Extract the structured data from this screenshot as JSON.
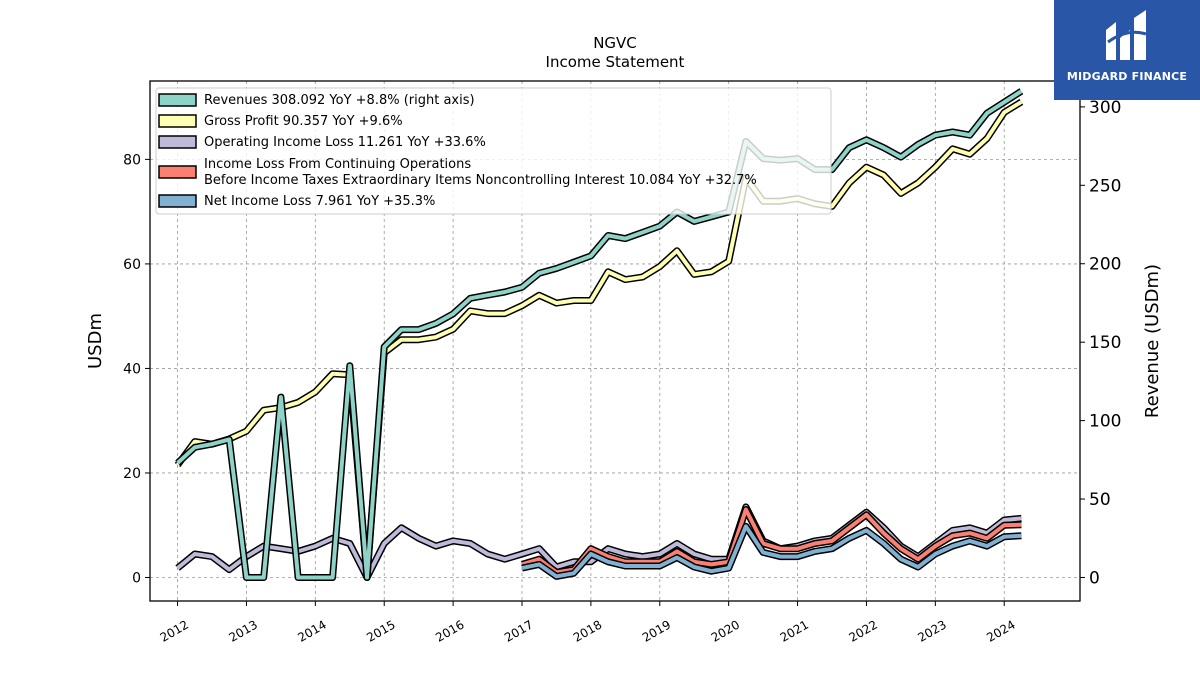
{
  "chart_data": {
    "type": "line",
    "title": "NGVC",
    "subtitle": "Income Statement",
    "ylabel_left": "USDm",
    "ylabel_right": "Revenue (USDm)",
    "ylim_left": [
      -4.5,
      95
    ],
    "ylim_right": [
      -15,
      316.5
    ],
    "yticks_left": [
      0,
      20,
      40,
      60,
      80
    ],
    "yticks_right": [
      0,
      50,
      100,
      150,
      200,
      250,
      300
    ],
    "xlim": [
      2011.6,
      2025.1
    ],
    "xticks": [
      "2012",
      "2013",
      "2014",
      "2015",
      "2016",
      "2017",
      "2018",
      "2019",
      "2020",
      "2021",
      "2022",
      "2023",
      "2024"
    ],
    "grid": true,
    "legend_placement": "top-left",
    "series": [
      {
        "name": "Revenues  308.092 YoY +8.8% (right axis)",
        "axis": "right",
        "color": "#8dd3c7",
        "x": [
          2012.0,
          2012.25,
          2012.5,
          2012.75,
          2013.0,
          2013.25,
          2013.5,
          2013.75,
          2014.0,
          2014.25,
          2014.5,
          2014.75,
          2015.0,
          2015.25,
          2015.5,
          2015.75,
          2016.0,
          2016.25,
          2016.5,
          2016.75,
          2017.0,
          2017.25,
          2017.5,
          2017.75,
          2018.0,
          2018.25,
          2018.5,
          2018.75,
          2019.0,
          2019.25,
          2019.5,
          2019.75,
          2020.0,
          2020.25,
          2020.5,
          2020.75,
          2021.0,
          2021.25,
          2021.5,
          2021.75,
          2022.0,
          2022.25,
          2022.5,
          2022.75,
          2023.0,
          2023.25,
          2023.5,
          2023.75,
          2024.0,
          2024.25
        ],
        "values": [
          73,
          83,
          85,
          88,
          0,
          0,
          115,
          0,
          0,
          0,
          135,
          0,
          147,
          158,
          158,
          162,
          168,
          178,
          180,
          182,
          185,
          194,
          197,
          201,
          205,
          218,
          216,
          220,
          224,
          233,
          227,
          230,
          233,
          278,
          267,
          266,
          267,
          260,
          260,
          274,
          279,
          274,
          268,
          276,
          282,
          284,
          282,
          296,
          303,
          310
        ]
      },
      {
        "name": "Gross Profit  90.357 YoY +9.6%",
        "axis": "left",
        "color": "#ffffb3",
        "x": [
          2012.0,
          2012.25,
          2012.5,
          2012.75,
          2013.0,
          2013.25,
          2013.5,
          2013.75,
          2014.0,
          2014.25,
          2014.5,
          2014.75,
          2015.0,
          2015.25,
          2015.5,
          2015.75,
          2016.0,
          2016.25,
          2016.5,
          2016.75,
          2017.0,
          2017.25,
          2017.5,
          2017.75,
          2018.0,
          2018.25,
          2018.5,
          2018.75,
          2019.0,
          2019.25,
          2019.5,
          2019.75,
          2020.0,
          2020.25,
          2020.5,
          2020.75,
          2021.0,
          2021.25,
          2021.5,
          2021.75,
          2022.0,
          2022.25,
          2022.5,
          2022.75,
          2023.0,
          2023.25,
          2023.5,
          2023.75,
          2024.0,
          2024.25
        ],
        "values": [
          21.5,
          26,
          25.5,
          26.5,
          28,
          32,
          32.5,
          33.5,
          35.5,
          39,
          38.8,
          0,
          43,
          45.5,
          45.5,
          46,
          47.5,
          51,
          50.5,
          50.5,
          52,
          54,
          52.5,
          53,
          53,
          58.5,
          57,
          57.5,
          59.5,
          62.5,
          58,
          58.5,
          60.5,
          76.5,
          72,
          72,
          72.5,
          71.5,
          71,
          75.5,
          78.5,
          77,
          73.5,
          75.5,
          78.5,
          82,
          81,
          84,
          89,
          91
        ]
      },
      {
        "name": "Operating Income Loss  11.261 YoY +33.6%",
        "axis": "left",
        "color": "#bebada",
        "x": [
          2012.0,
          2012.25,
          2012.5,
          2012.75,
          2013.0,
          2013.25,
          2013.5,
          2013.75,
          2014.0,
          2014.25,
          2014.5,
          2014.75,
          2015.0,
          2015.25,
          2015.5,
          2015.75,
          2016.0,
          2016.25,
          2016.5,
          2016.75,
          2017.0,
          2017.25,
          2017.5,
          2017.75,
          2018.0,
          2018.25,
          2018.5,
          2018.75,
          2019.0,
          2019.25,
          2019.5,
          2019.75,
          2020.0,
          2020.25,
          2020.5,
          2020.75,
          2021.0,
          2021.25,
          2021.5,
          2021.75,
          2022.0,
          2022.25,
          2022.5,
          2022.75,
          2023.0,
          2023.25,
          2023.5,
          2023.75,
          2024.0,
          2024.25
        ],
        "values": [
          1.8,
          4.5,
          4,
          1.5,
          4,
          6,
          5.5,
          5,
          6,
          7.5,
          6.5,
          0,
          6.5,
          9.5,
          7.5,
          6,
          7,
          6.5,
          4.5,
          3.5,
          4.5,
          5.5,
          2,
          3,
          3,
          5.5,
          4.5,
          4,
          4.5,
          6.5,
          4.5,
          3.5,
          3.5,
          13.5,
          7,
          5.5,
          6,
          7,
          7.5,
          10,
          12.5,
          9.5,
          6,
          4,
          6.5,
          9,
          9.5,
          8.5,
          11,
          11.3
        ]
      },
      {
        "name": "Income Loss From Continuing Operations\nBefore Income Taxes Extraordinary Items Noncontrolling Interest  10.084 YoY +32.7%",
        "axis": "left",
        "color": "#fb8072",
        "x": [
          2017.0,
          2017.25,
          2017.5,
          2017.75,
          2018.0,
          2018.25,
          2018.5,
          2018.75,
          2019.0,
          2019.25,
          2019.5,
          2019.75,
          2020.0,
          2020.25,
          2020.5,
          2020.75,
          2021.0,
          2021.25,
          2021.5,
          2021.75,
          2022.0,
          2022.25,
          2022.5,
          2022.75,
          2023.0,
          2023.25,
          2023.5,
          2023.75,
          2024.0,
          2024.25
        ],
        "values": [
          2.5,
          3.5,
          1,
          1.5,
          5.5,
          4,
          3,
          3,
          3,
          5,
          3,
          2.5,
          3,
          13,
          6.5,
          5.5,
          5.5,
          6.5,
          7,
          9.5,
          12,
          8.5,
          5.5,
          3.5,
          6,
          8,
          8.5,
          7.5,
          10,
          10.1
        ]
      },
      {
        "name": "Net Income Loss  7.961 YoY +35.3%",
        "axis": "left",
        "color": "#80b1d3",
        "x": [
          2017.0,
          2017.25,
          2017.5,
          2017.75,
          2018.0,
          2018.25,
          2018.5,
          2018.75,
          2019.0,
          2019.25,
          2019.5,
          2019.75,
          2020.0,
          2020.25,
          2020.5,
          2020.75,
          2021.0,
          2021.25,
          2021.5,
          2021.75,
          2022.0,
          2022.25,
          2022.5,
          2022.75,
          2023.0,
          2023.25,
          2023.5,
          2023.75,
          2024.0,
          2024.25
        ],
        "values": [
          1.8,
          2.5,
          0.2,
          0.8,
          4.5,
          3,
          2.2,
          2.2,
          2.2,
          3.8,
          2,
          1.2,
          1.8,
          9.8,
          4.8,
          4,
          4,
          5,
          5.5,
          7.5,
          9,
          6.5,
          3.5,
          2,
          4.5,
          6,
          7,
          6,
          7.8,
          8
        ]
      }
    ]
  },
  "logo": {
    "text": "MIDGARD FINANCE"
  }
}
